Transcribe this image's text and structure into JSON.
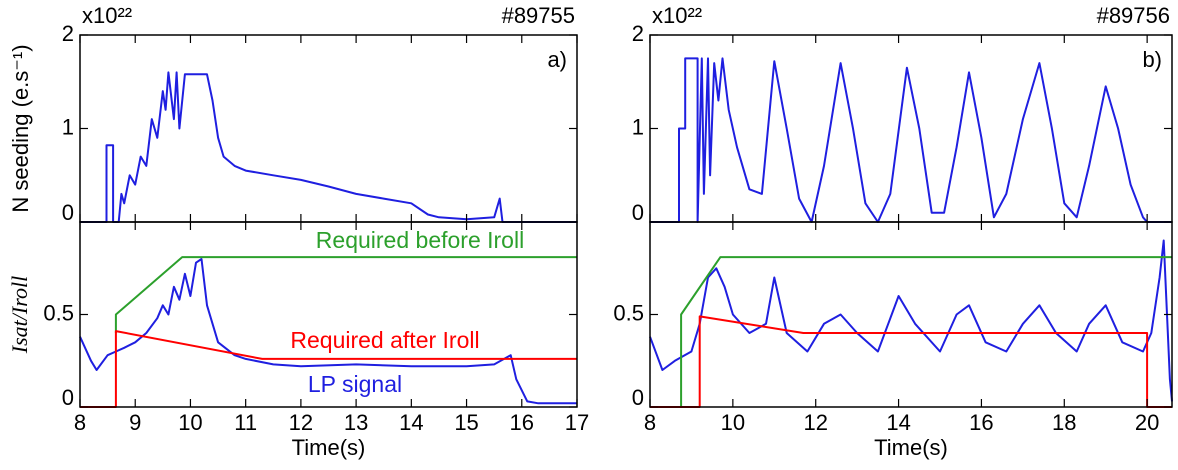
{
  "chart_data": [
    {
      "type": "line",
      "ylabel": "N seeding (e.s⁻¹)",
      "scale_label": "x10²²",
      "shot": "#89755",
      "panel_label": "a)",
      "xlim": [
        8,
        17
      ],
      "ylim": [
        0,
        2
      ],
      "yticks": [
        0,
        1,
        2
      ],
      "x": [
        8,
        8.48,
        8.48,
        8.6,
        8.6,
        8.7,
        8.75,
        8.8,
        8.9,
        9.0,
        9.1,
        9.2,
        9.3,
        9.4,
        9.5,
        9.55,
        9.6,
        9.7,
        9.75,
        9.8,
        9.9,
        10.0,
        10.1,
        10.2,
        10.3,
        10.4,
        10.5,
        10.6,
        10.8,
        11.0,
        11.5,
        12.0,
        12.5,
        13.0,
        13.5,
        14.0,
        14.3,
        14.5,
        15.0,
        15.5,
        15.6,
        15.65,
        17
      ],
      "series": [
        {
          "color": "#1f1fe0",
          "values": [
            0,
            0,
            0.82,
            0.82,
            0,
            0,
            0.3,
            0.2,
            0.5,
            0.4,
            0.7,
            0.6,
            1.1,
            0.9,
            1.4,
            1.2,
            1.6,
            1.1,
            1.6,
            1.0,
            1.58,
            1.58,
            1.58,
            1.58,
            1.58,
            1.3,
            0.9,
            0.7,
            0.6,
            0.55,
            0.5,
            0.45,
            0.38,
            0.3,
            0.25,
            0.2,
            0.08,
            0.05,
            0.03,
            0.05,
            0.25,
            0,
            0
          ]
        }
      ]
    },
    {
      "type": "line",
      "ylabel": "Isat/Iroll",
      "xlabel": "Time(s)",
      "xlim": [
        8,
        17
      ],
      "ylim": [
        0,
        1
      ],
      "yticks": [
        0,
        0.5
      ],
      "xticks": [
        8,
        9,
        10,
        11,
        12,
        13,
        14,
        15,
        16,
        17
      ],
      "series": [
        {
          "name": "LP signal",
          "color": "#1f1fe0",
          "x": [
            8,
            8.2,
            8.3,
            8.5,
            8.65,
            8.8,
            9,
            9.2,
            9.4,
            9.5,
            9.6,
            9.7,
            9.8,
            9.9,
            10,
            10.1,
            10.2,
            10.3,
            10.5,
            10.8,
            11,
            11.5,
            12,
            13,
            14,
            15,
            15.5,
            15.8,
            15.9,
            16.1,
            16.3,
            17
          ],
          "values": [
            0.38,
            0.25,
            0.2,
            0.28,
            0.3,
            0.32,
            0.35,
            0.4,
            0.48,
            0.55,
            0.5,
            0.65,
            0.58,
            0.72,
            0.6,
            0.78,
            0.8,
            0.55,
            0.35,
            0.28,
            0.26,
            0.23,
            0.22,
            0.23,
            0.22,
            0.22,
            0.23,
            0.28,
            0.15,
            0.03,
            0.02,
            0.02
          ]
        },
        {
          "name": "Required before Iroll",
          "color": "#2ca02c",
          "x": [
            8.65,
            8.65,
            9.85,
            17
          ],
          "values": [
            0.4,
            0.5,
            0.81,
            0.81
          ]
        },
        {
          "name": "Required after Iroll",
          "color": "#ff0000",
          "x": [
            8,
            8.65,
            8.65,
            11.3,
            17
          ],
          "values": [
            0,
            0,
            0.41,
            0.26,
            0.26
          ]
        }
      ]
    },
    {
      "type": "line",
      "scale_label": "x10²²",
      "shot": "#89756",
      "panel_label": "b)",
      "xlim": [
        8,
        20.6
      ],
      "ylim": [
        0,
        2
      ],
      "yticks": [
        0,
        1,
        2
      ],
      "x": [
        8,
        8.7,
        8.7,
        8.85,
        8.85,
        9.15,
        9.15,
        9.25,
        9.3,
        9.4,
        9.45,
        9.55,
        9.65,
        9.75,
        9.9,
        10.1,
        10.4,
        10.7,
        11.0,
        11.3,
        11.6,
        11.9,
        12.2,
        12.6,
        12.9,
        13.2,
        13.5,
        13.8,
        14.2,
        14.5,
        14.8,
        15.1,
        15.4,
        15.7,
        16.0,
        16.3,
        16.6,
        17.0,
        17.4,
        17.7,
        18.0,
        18.3,
        18.6,
        19.0,
        19.3,
        19.6,
        19.9,
        20.0,
        20.6
      ],
      "series": [
        {
          "color": "#1f1fe0",
          "values": [
            0,
            0,
            1.0,
            1.0,
            1.75,
            1.75,
            0,
            1.75,
            0.3,
            1.75,
            0.5,
            1.7,
            1.3,
            1.75,
            1.2,
            0.8,
            0.35,
            0.3,
            1.72,
            1.0,
            0.25,
            0.0,
            0.6,
            1.7,
            1.0,
            0.2,
            0.0,
            0.3,
            1.65,
            1.0,
            0.1,
            0.1,
            0.8,
            1.6,
            0.9,
            0.05,
            0.3,
            1.1,
            1.7,
            1.0,
            0.2,
            0.05,
            0.6,
            1.45,
            1.0,
            0.4,
            0.05,
            0,
            0
          ]
        }
      ]
    },
    {
      "type": "line",
      "xlabel": "Time(s)",
      "xlim": [
        8,
        20.6
      ],
      "ylim": [
        0,
        1
      ],
      "yticks": [
        0,
        0.5
      ],
      "xticks": [
        8,
        10,
        12,
        14,
        16,
        18,
        20
      ],
      "series": [
        {
          "color": "#1f1fe0",
          "x": [
            8,
            8.3,
            8.6,
            9,
            9.2,
            9.4,
            9.6,
            9.8,
            10,
            10.4,
            10.8,
            11.0,
            11.3,
            11.8,
            12.2,
            12.6,
            13,
            13.5,
            14,
            14.4,
            15,
            15.4,
            15.7,
            16.1,
            16.6,
            17,
            17.4,
            17.8,
            18.3,
            18.6,
            19,
            19.4,
            19.9,
            20.1,
            20.3,
            20.4,
            20.55,
            20.6
          ],
          "values": [
            0.38,
            0.2,
            0.25,
            0.3,
            0.45,
            0.7,
            0.75,
            0.65,
            0.5,
            0.4,
            0.45,
            0.7,
            0.4,
            0.3,
            0.45,
            0.5,
            0.4,
            0.3,
            0.6,
            0.45,
            0.3,
            0.5,
            0.55,
            0.35,
            0.3,
            0.45,
            0.55,
            0.4,
            0.3,
            0.45,
            0.55,
            0.35,
            0.3,
            0.4,
            0.7,
            0.9,
            0.15,
            0.03
          ]
        },
        {
          "color": "#2ca02c",
          "x": [
            8.75,
            8.75,
            9.7,
            20.6
          ],
          "values": [
            0,
            0.5,
            0.81,
            0.81
          ]
        },
        {
          "color": "#ff0000",
          "x": [
            8,
            9.2,
            9.2,
            11.7,
            20,
            20,
            20.6
          ],
          "values": [
            0,
            0,
            0.49,
            0.4,
            0.4,
            0,
            0
          ]
        }
      ]
    }
  ]
}
